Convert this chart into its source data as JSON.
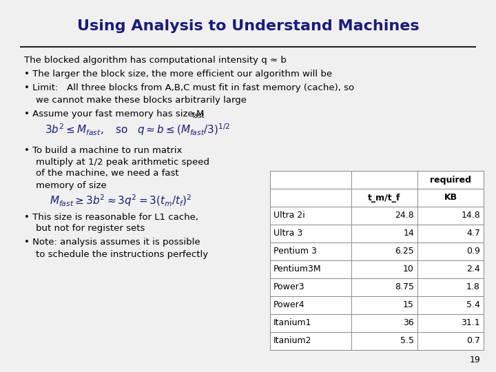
{
  "title": "Using Analysis to Understand Machines",
  "title_color": "#1a1a7e",
  "bg_color": "#f0f0f0",
  "text_color": "#000000",
  "dark_navy": "#1a1a7e",
  "table_rows": [
    [
      "Ultra 2i",
      "24.8",
      "14.8"
    ],
    [
      "Ultra 3",
      "14",
      "4.7"
    ],
    [
      "Pentium 3",
      "6.25",
      "0.9"
    ],
    [
      "Pentium3M",
      "10",
      "2.4"
    ],
    [
      "Power3",
      "8.75",
      "1.8"
    ],
    [
      "Power4",
      "15",
      "5.4"
    ],
    [
      "Itanium1",
      "36",
      "31.1"
    ],
    [
      "Itanium2",
      "5.5",
      "0.7"
    ]
  ],
  "page_number": "19",
  "figsize": [
    7.2,
    5.4
  ],
  "dpi": 100
}
